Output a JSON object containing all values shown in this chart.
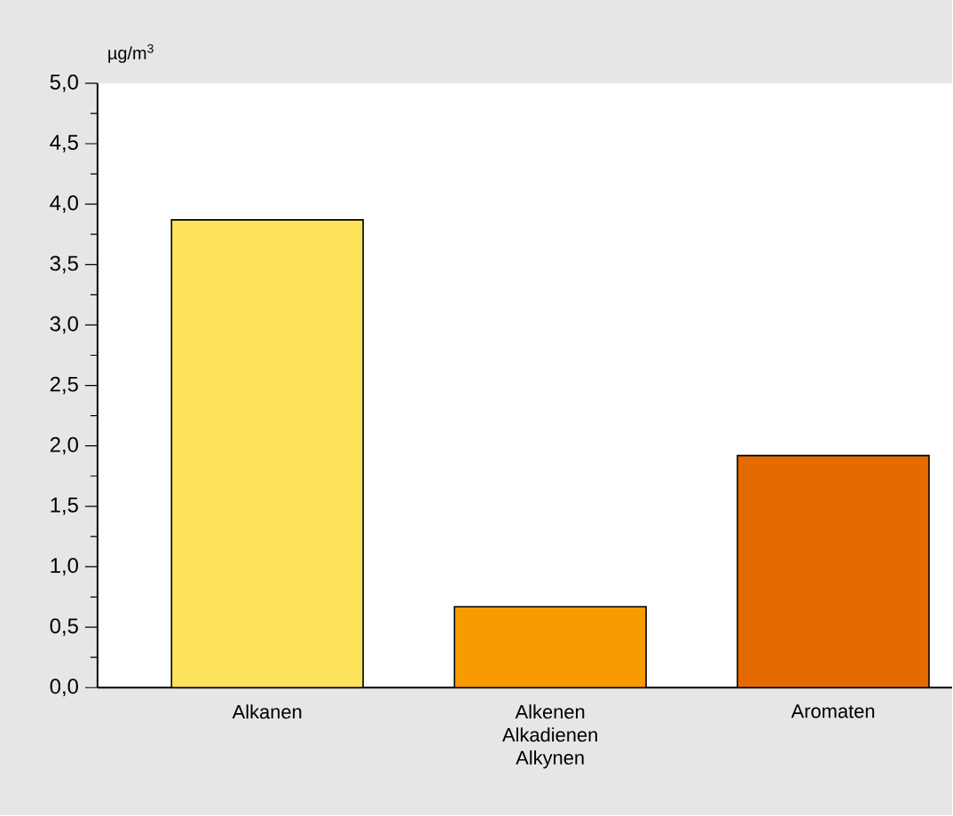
{
  "chart_data": {
    "type": "bar",
    "ylabel": "µg/m$^{3}$",
    "categories": [
      "Alkanen",
      "Alkenen Alkadienen Alkynen",
      "Aromaten"
    ],
    "values": [
      3.87,
      0.67,
      1.92
    ],
    "colors": [
      "#fee45c",
      "#f79b00",
      "#e56a00"
    ],
    "ylim": [
      0,
      5
    ],
    "yticks": [
      {
        "value": 0,
        "label": "0,0"
      },
      {
        "value": 0.5,
        "label": "0,5"
      },
      {
        "value": 1,
        "label": "1,0"
      },
      {
        "value": 1.5,
        "label": "1,5"
      },
      {
        "value": 2,
        "label": "2,0"
      },
      {
        "value": 2.5,
        "label": "2,5"
      },
      {
        "value": 3,
        "label": "3,0"
      },
      {
        "value": 3.5,
        "label": "3,5"
      },
      {
        "value": 4,
        "label": "4,0"
      },
      {
        "value": 4.5,
        "label": "4,5"
      },
      {
        "value": 5,
        "label": "5,0"
      }
    ],
    "grid": false
  }
}
